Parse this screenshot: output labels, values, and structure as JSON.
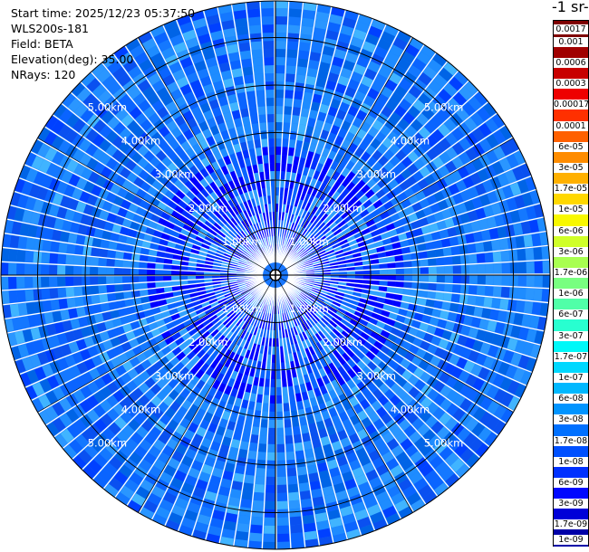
{
  "info": {
    "start_time": "Start time: 2025/12/23 05:37:50",
    "instrument": "WLS200s-181",
    "field": "Field: BETA",
    "elevation": "Elevation(deg): 35.00",
    "nrays": "NRays: 120"
  },
  "colorbar": {
    "units_label": "-1 sr-",
    "ticks": [
      "0.0017",
      "0.001",
      "0.0006",
      "0.0003",
      "0.00017",
      "0.0001",
      "6e-05",
      "3e-05",
      "1.7e-05",
      "1e-05",
      "6e-06",
      "3e-06",
      "1.7e-06",
      "1e-06",
      "6e-07",
      "3e-07",
      "1.7e-07",
      "1e-07",
      "6e-08",
      "3e-08",
      "1.7e-08",
      "1e-08",
      "6e-09",
      "3e-09",
      "1.7e-09",
      "1e-09"
    ],
    "colors": [
      "#7f0000",
      "#a00000",
      "#c80000",
      "#ee0000",
      "#ff3000",
      "#ff6000",
      "#ff8c00",
      "#ffb000",
      "#ffd800",
      "#f8f800",
      "#d0ff28",
      "#a8ff50",
      "#78ff80",
      "#50ffa8",
      "#28ffd0",
      "#00f8f8",
      "#00d8ff",
      "#00b8ff",
      "#0094ff",
      "#0070ff",
      "#0050ff",
      "#0030ff",
      "#0008ff",
      "#0000d8",
      "#0000a8",
      "#000080"
    ]
  },
  "chart_data": {
    "type": "heatmap",
    "projection": "polar PPI",
    "field": "BETA",
    "elevation_deg": 35.0,
    "n_rays": 120,
    "range_rings_km": [
      1.0,
      2.0,
      3.0,
      4.0,
      5.0
    ],
    "range_ring_labels": [
      "1.00km",
      "2.00km",
      "3.00km",
      "4.00km",
      "5.00km"
    ],
    "max_range_km": 5.8,
    "scale": "log",
    "color_range": [
      1e-09,
      0.0017
    ],
    "dominant_values": "mostly 1e-08 to 6e-08, with 1e-07 patches and 1e-08/1e-09 near center"
  }
}
